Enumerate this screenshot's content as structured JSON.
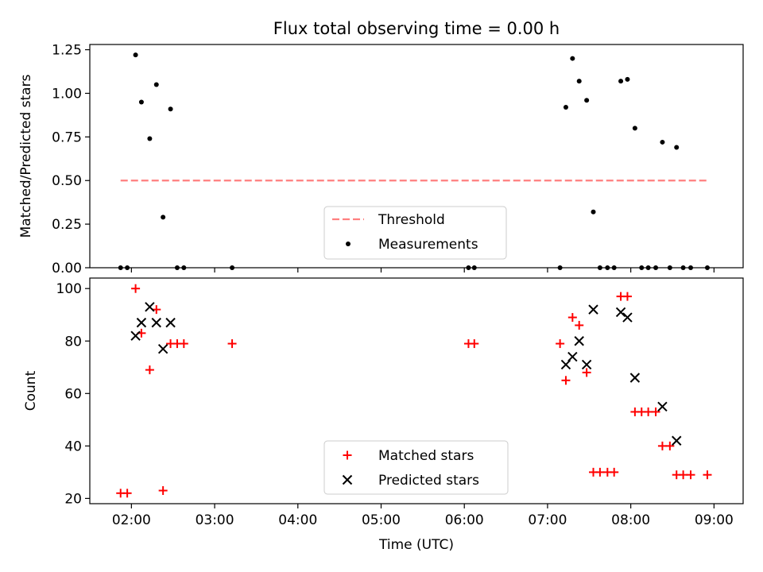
{
  "title": "Flux total observing time = 0.00 h",
  "colors": {
    "threshold": "#ff7f7f",
    "measurement": "#000000",
    "matched": "#ff0000",
    "predicted": "#000000",
    "axis": "#000000"
  },
  "chart_data": [
    {
      "type": "scatter",
      "panel": "top",
      "xlabel": "",
      "ylabel": "Matched/Predicted stars",
      "xlim": [
        1.5,
        9.35
      ],
      "ylim": [
        0,
        1.28
      ],
      "yticks": [
        0.0,
        0.25,
        0.5,
        0.75,
        1.0,
        1.25
      ],
      "ytick_labels": [
        "0.00",
        "0.25",
        "0.50",
        "0.75",
        "1.00",
        "1.25"
      ],
      "xticks": [
        2,
        3,
        4,
        5,
        6,
        7,
        8,
        9
      ],
      "legend_position": "lower-center",
      "threshold": {
        "name": "Threshold",
        "value": 0.5,
        "x_range": [
          1.87,
          8.92
        ]
      },
      "series": [
        {
          "name": "Measurements",
          "x": [
            1.87,
            1.95,
            2.05,
            2.12,
            2.22,
            2.3,
            2.38,
            2.47,
            2.55,
            2.63,
            3.21,
            6.05,
            6.12,
            7.15,
            7.22,
            7.3,
            7.38,
            7.47,
            7.55,
            7.63,
            7.72,
            7.8,
            7.88,
            7.96,
            8.05,
            8.13,
            8.21,
            8.3,
            8.38,
            8.47,
            8.55,
            8.63,
            8.72,
            8.92
          ],
          "y": [
            0.0,
            0.0,
            1.22,
            0.95,
            0.74,
            1.05,
            0.29,
            0.91,
            0.0,
            0.0,
            0.0,
            0.0,
            0.0,
            0.0,
            0.92,
            1.2,
            1.07,
            0.96,
            0.32,
            0.0,
            0.0,
            0.0,
            1.07,
            1.08,
            0.8,
            0.0,
            0.0,
            0.0,
            0.72,
            0.0,
            0.69,
            0.0,
            0.0,
            0.0
          ]
        }
      ]
    },
    {
      "type": "scatter",
      "panel": "bottom",
      "xlabel": "Time (UTC)",
      "ylabel": "Count",
      "xlim": [
        1.5,
        9.35
      ],
      "ylim": [
        18,
        104
      ],
      "yticks": [
        20,
        40,
        60,
        80,
        100
      ],
      "ytick_labels": [
        "20",
        "40",
        "60",
        "80",
        "100"
      ],
      "xticks": [
        2,
        3,
        4,
        5,
        6,
        7,
        8,
        9
      ],
      "xtick_labels": [
        "02:00",
        "03:00",
        "04:00",
        "05:00",
        "06:00",
        "07:00",
        "08:00",
        "09:00"
      ],
      "legend_position": "lower-center",
      "series": [
        {
          "name": "Matched stars",
          "marker": "plus",
          "x": [
            1.87,
            1.95,
            2.05,
            2.12,
            2.22,
            2.3,
            2.38,
            2.47,
            2.55,
            2.63,
            3.21,
            6.05,
            6.12,
            7.15,
            7.22,
            7.3,
            7.38,
            7.47,
            7.55,
            7.63,
            7.72,
            7.8,
            7.88,
            7.96,
            8.05,
            8.13,
            8.21,
            8.3,
            8.38,
            8.47,
            8.55,
            8.63,
            8.72,
            8.92
          ],
          "y": [
            22,
            22,
            100,
            83,
            69,
            92,
            23,
            79,
            79,
            79,
            79,
            79,
            79,
            79,
            65,
            89,
            86,
            68,
            30,
            30,
            30,
            30,
            97,
            97,
            53,
            53,
            53,
            53,
            40,
            40,
            29,
            29,
            29,
            29
          ]
        },
        {
          "name": "Predicted stars",
          "marker": "x",
          "x": [
            2.05,
            2.12,
            2.22,
            2.3,
            2.38,
            2.47,
            7.22,
            7.3,
            7.38,
            7.47,
            7.55,
            7.88,
            7.96,
            8.05,
            8.38,
            8.55
          ],
          "y": [
            82,
            87,
            93,
            87,
            77,
            87,
            71,
            74,
            80,
            71,
            92,
            91,
            89,
            66,
            55,
            42
          ]
        }
      ]
    }
  ]
}
